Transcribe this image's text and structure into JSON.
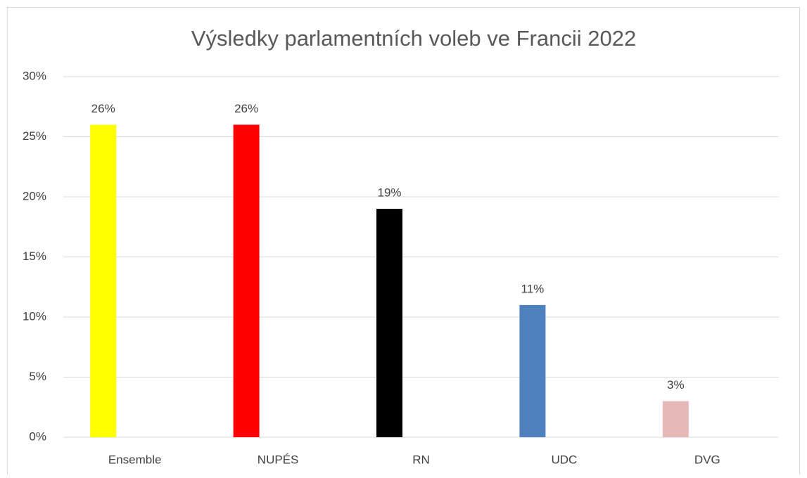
{
  "chart_data": {
    "type": "bar",
    "title": "Výsledky parlamentních voleb ve Francii 2022",
    "categories": [
      "Ensemble",
      "NUPÉS",
      "RN",
      "UDC",
      "DVG"
    ],
    "values": [
      26,
      26,
      19,
      11,
      3
    ],
    "value_labels": [
      "26%",
      "26%",
      "19%",
      "11%",
      "3%"
    ],
    "colors": [
      "#ffff00",
      "#ff0000",
      "#000000",
      "#4f81bd",
      "#e6b9b8"
    ],
    "ylim": [
      0,
      30
    ],
    "yticks": [
      {
        "value": 0,
        "label": "0%"
      },
      {
        "value": 5,
        "label": "5%"
      },
      {
        "value": 10,
        "label": "10%"
      },
      {
        "value": 15,
        "label": "15%"
      },
      {
        "value": 20,
        "label": "20%"
      },
      {
        "value": 25,
        "label": "25%"
      },
      {
        "value": 30,
        "label": "30%"
      }
    ],
    "grid": true
  }
}
